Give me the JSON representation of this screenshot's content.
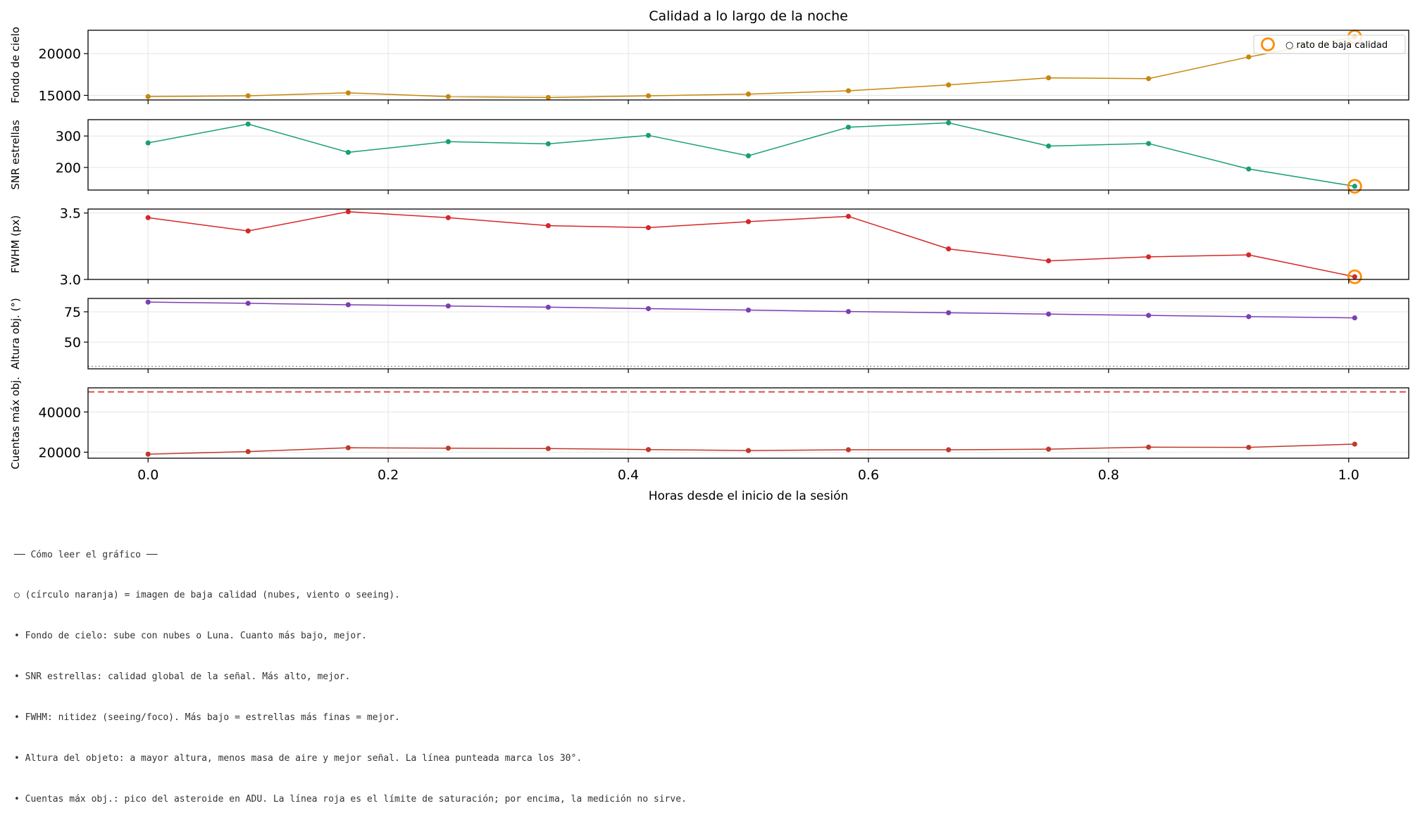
{
  "chart_data": {
    "type": "line",
    "title": "Calidad a lo largo de la noche",
    "xlabel": "Horas desde el inicio de la sesión",
    "xlim": [
      -0.05,
      1.05
    ],
    "xticks": [
      0.0,
      0.2,
      0.4,
      0.6,
      0.8,
      1.0
    ],
    "xtick_labels": [
      "0.0",
      "0.2",
      "0.4",
      "0.6",
      "0.8",
      "1.0"
    ],
    "x": [
      0.0,
      0.0833,
      0.1667,
      0.25,
      0.3333,
      0.4167,
      0.5,
      0.5833,
      0.6667,
      0.75,
      0.8333,
      0.9167,
      1.005
    ],
    "grid": true,
    "panels": [
      {
        "ylabel": "Fondo de cielo",
        "color": "#c8860a",
        "ylim": [
          14450,
          22800
        ],
        "yticks": [
          15000,
          20000
        ],
        "ytick_labels": [
          "15000",
          "20000"
        ],
        "values": [
          14850,
          14950,
          15300,
          14850,
          14750,
          14950,
          15150,
          15550,
          16250,
          17100,
          17000,
          19600,
          22000
        ],
        "bad_points": [
          12
        ],
        "legend": {
          "label": "○ rato de baja calidad",
          "loc": "upper right"
        }
      },
      {
        "ylabel": "SNR estrellas",
        "color": "#1a9e77",
        "ylim": [
          128,
          352
        ],
        "yticks": [
          200,
          300
        ],
        "ytick_labels": [
          "200",
          "300"
        ],
        "values": [
          278,
          338,
          248,
          282,
          275,
          302,
          237,
          328,
          342,
          268,
          276,
          195,
          140
        ],
        "bad_points": [
          12
        ]
      },
      {
        "ylabel": "FWHM (px)",
        "color": "#d62728",
        "ylim": [
          3.0,
          3.53
        ],
        "yticks": [
          3.0,
          3.5
        ],
        "ytick_labels": [
          "3.0",
          "3.5"
        ],
        "values": [
          3.465,
          3.365,
          3.51,
          3.465,
          3.405,
          3.39,
          3.435,
          3.475,
          3.23,
          3.14,
          3.17,
          3.185,
          3.02
        ],
        "bad_points": [
          12
        ]
      },
      {
        "ylabel": "Altura obj. (°)",
        "color": "#7b3fb0",
        "ylim": [
          28,
          86
        ],
        "yticks": [
          50,
          75
        ],
        "ytick_labels": [
          "50",
          "75"
        ],
        "values": [
          83,
          82,
          80.8,
          79.8,
          78.8,
          77.6,
          76.4,
          75.2,
          74.2,
          73.1,
          72,
          71,
          70
        ],
        "bad_points": [],
        "reference_line": {
          "value": 30,
          "style": "dotted",
          "color": "#999999"
        }
      },
      {
        "ylabel": "Cuentas máx obj.",
        "color": "#c0392b",
        "ylim": [
          17000,
          52000
        ],
        "yticks": [
          20000,
          40000
        ],
        "ytick_labels": [
          "20000",
          "40000"
        ],
        "values": [
          19000,
          20300,
          22200,
          22000,
          21800,
          21300,
          20800,
          21200,
          21200,
          21500,
          22500,
          22400,
          24000
        ],
        "bad_points": [],
        "reference_line": {
          "value": 50000,
          "style": "dashed",
          "color": "#d9534f"
        }
      }
    ],
    "bad_marker_color": "#ff8c00"
  },
  "notes": [
    "── Cómo leer el gráfico ──",
    "○ (círculo naranja) = imagen de baja calidad (nubes, viento o seeing).",
    "• Fondo de cielo: sube con nubes o Luna. Cuanto más bajo, mejor.",
    "• SNR estrellas: calidad global de la señal. Más alto, mejor.",
    "• FWHM: nitidez (seeing/foco). Más bajo = estrellas más finas = mejor.",
    "• Altura del objeto: a mayor altura, menos masa de aire y mejor señal. La línea punteada marca los 30°.",
    "• Cuentas máx obj.: pico del asteroide en ADU. La línea roja es el límite de saturación; por encima, la medición no sirve."
  ]
}
